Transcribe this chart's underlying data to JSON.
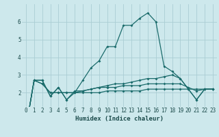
{
  "xlabel": "Humidex (Indice chaleur)",
  "bg_color": "#cde8ec",
  "grid_color": "#aacdd4",
  "line_color": "#1a6b6b",
  "xlim": [
    -0.5,
    23.5
  ],
  "ylim": [
    1.2,
    7.0
  ],
  "yticks": [
    2,
    3,
    4,
    5,
    6
  ],
  "xticks": [
    0,
    1,
    2,
    3,
    4,
    5,
    6,
    7,
    8,
    9,
    10,
    11,
    12,
    13,
    14,
    15,
    16,
    17,
    18,
    19,
    20,
    21,
    22,
    23
  ],
  "series": [
    [
      0,
      2.7,
      2.7,
      1.8,
      2.3,
      1.6,
      2.0,
      2.7,
      3.4,
      3.8,
      4.6,
      4.6,
      5.8,
      5.8,
      6.2,
      6.5,
      6.0,
      3.5,
      3.2,
      2.8,
      2.2,
      1.6,
      2.2,
      2.2
    ],
    [
      0,
      2.7,
      2.7,
      1.8,
      2.3,
      1.6,
      2.1,
      2.1,
      2.2,
      2.3,
      2.4,
      2.5,
      2.5,
      2.6,
      2.7,
      2.8,
      2.8,
      2.9,
      3.0,
      2.8,
      2.2,
      1.6,
      2.2,
      2.2
    ],
    [
      0,
      2.7,
      2.5,
      2.0,
      2.0,
      2.0,
      2.0,
      2.1,
      2.2,
      2.3,
      2.3,
      2.3,
      2.4,
      2.4,
      2.4,
      2.5,
      2.5,
      2.5,
      2.5,
      2.5,
      2.3,
      2.1,
      2.2,
      2.2
    ],
    [
      0,
      2.7,
      2.5,
      2.0,
      2.0,
      2.0,
      2.0,
      2.0,
      2.0,
      2.0,
      2.1,
      2.1,
      2.1,
      2.1,
      2.1,
      2.2,
      2.2,
      2.2,
      2.2,
      2.2,
      2.2,
      2.2,
      2.2,
      2.2
    ]
  ],
  "series_x": [
    0,
    1,
    2,
    3,
    4,
    5,
    6,
    7,
    8,
    9,
    10,
    11,
    12,
    13,
    14,
    15,
    16,
    17,
    18,
    19,
    20,
    21,
    22,
    23
  ]
}
